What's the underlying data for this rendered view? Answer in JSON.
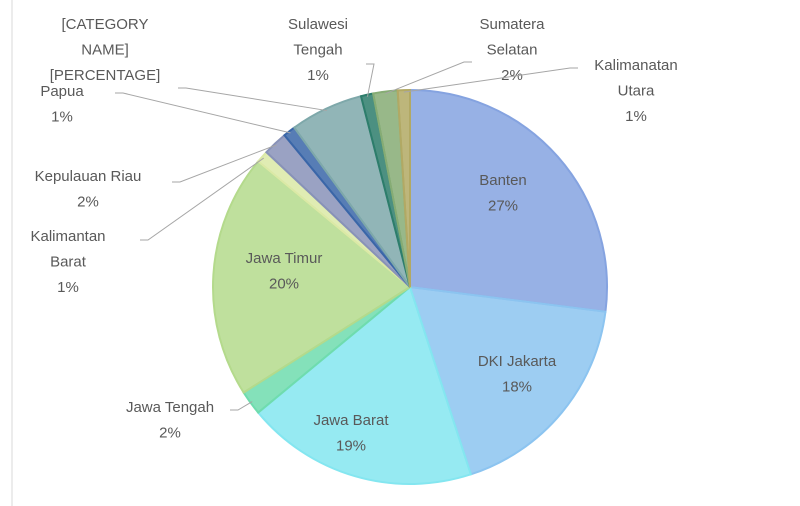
{
  "chart_data": {
    "type": "pie",
    "categories": [
      "Banten",
      "DKI Jakarta",
      "Jawa Barat",
      "Jawa Tengah",
      "Jawa Timur",
      "Kalimantan Barat",
      "Kepulauan Riau",
      "Papua",
      "[CATEGORY NAME]",
      "Sulawesi Tengah",
      "Sumatera Selatan",
      "Kalimanatan Utara"
    ],
    "values": [
      27,
      18,
      19,
      2,
      20,
      1,
      2,
      1,
      6,
      1,
      2,
      1
    ],
    "value_labels": [
      "27%",
      "18%",
      "19%",
      "2%",
      "20%",
      "1%",
      "2%",
      "1%",
      "[PERCENTAGE]",
      "1%",
      "2%",
      "1%"
    ],
    "colors": [
      "#85a3e0",
      "#8cc4f0",
      "#84e6f0",
      "#6fdcae",
      "#b4da8c",
      "#dbe9a6",
      "#8892b8",
      "#3a66a8",
      "#7ea8aa",
      "#2d7d6b",
      "#86ac74",
      "#b2a964"
    ]
  }
}
